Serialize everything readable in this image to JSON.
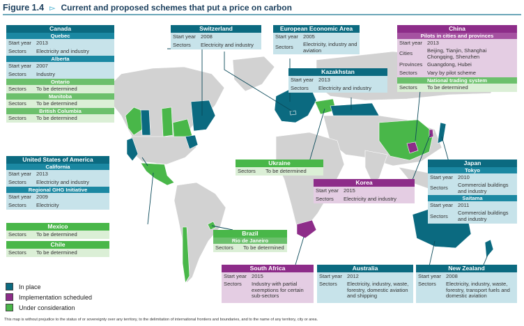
{
  "figure": {
    "number": "Figure 1.4",
    "title": "Current and proposed schemes that put a price on carbon"
  },
  "colors": {
    "in_place": "#0b6a80",
    "scheduled": "#8d2c89",
    "consideration": "#49b749",
    "land": "#d2d2d2"
  },
  "legend": [
    {
      "label": "In place",
      "color": "#0b6a80"
    },
    {
      "label": "Implementation scheduled",
      "color": "#8d2c89"
    },
    {
      "label": "Under consideration",
      "color": "#49b749"
    }
  ],
  "boxes": {
    "canada": {
      "title": "Canada",
      "quebec": "Quebec",
      "q_start_k": "Start year",
      "q_start_v": "2013",
      "q_sect_k": "Sectors",
      "q_sect_v": "Electricity and industry",
      "alberta": "Alberta",
      "a_start_k": "Start year",
      "a_start_v": "2007",
      "a_sect_k": "Sectors",
      "a_sect_v": "Industry",
      "ontario": "Ontario",
      "o_sect_k": "Sectors",
      "o_sect_v": "To be determined",
      "manitoba": "Manitoba",
      "m_sect_k": "Sectors",
      "m_sect_v": "To be determined",
      "bc": "British Columbia",
      "bc_sect_k": "Sectors",
      "bc_sect_v": "To be determined"
    },
    "switzerland": {
      "title": "Switzerland",
      "start_k": "Start year",
      "start_v": "2008",
      "sect_k": "Sectors",
      "sect_v": "Electricity and industry"
    },
    "eea": {
      "title": "European Economic Area",
      "start_k": "Start year",
      "start_v": "2005",
      "sect_k": "Sectors",
      "sect_v": "Electricity, industry and aviation"
    },
    "china": {
      "title": "China",
      "pilots": "Pilots in cities and provinces",
      "start_k": "Start year",
      "start_v": "2013",
      "cities_k": "Cities",
      "cities_v": "Beijing, Tianjin, Shanghai Chongqing, Shenzhen",
      "prov_k": "Provinces",
      "prov_v": "Guangdong, Hubei",
      "sect_k": "Sectors",
      "sect_v": "Vary by pilot scheme",
      "national": "National trading system",
      "n_sect_k": "Sectors",
      "n_sect_v": "To be determined"
    },
    "kazakhstan": {
      "title": "Kazakhstan",
      "start_k": "Start year",
      "start_v": "2013",
      "sect_k": "Sectors",
      "sect_v": "Electricity and industry"
    },
    "usa": {
      "title": "United States of America",
      "california": "California",
      "c_start_k": "Start year",
      "c_start_v": "2013",
      "c_sect_k": "Sectors",
      "c_sect_v": "Electricity and industry",
      "rggi": "Regional GHG Initiative",
      "r_start_k": "Start year",
      "r_start_v": "2009",
      "r_sect_k": "Sectors",
      "r_sect_v": "Electricity"
    },
    "ukraine": {
      "title": "Ukraine",
      "sect_k": "Sectors",
      "sect_v": "To be determined"
    },
    "korea": {
      "title": "Korea",
      "start_k": "Start year",
      "start_v": "2015",
      "sect_k": "Sectors",
      "sect_v": "Electricity and industry"
    },
    "japan": {
      "title": "Japan",
      "tokyo": "Tokyo",
      "t_start_k": "Start year",
      "t_start_v": "2010",
      "t_sect_k": "Sectors",
      "t_sect_v": "Commercial buildings and industry",
      "saitama": "Saitama",
      "s_start_k": "Start year",
      "s_start_v": "2011",
      "s_sect_k": "Sectors",
      "s_sect_v": "Commercial buildings and industry"
    },
    "mexico": {
      "title": "Mexico",
      "sect_k": "Sectors",
      "sect_v": "To be determined"
    },
    "chile": {
      "title": "Chile",
      "sect_k": "Sectors",
      "sect_v": "To be determined"
    },
    "brazil": {
      "title": "Brazil",
      "rio": "Rio de Janeiro",
      "sect_k": "Sectors",
      "sect_v": "To be determined"
    },
    "south_africa": {
      "title": "South Africa",
      "start_k": "Start year",
      "start_v": "2015",
      "sect_k": "Sectors",
      "sect_v": "Industry with partial exemptions for certain sub-sectors"
    },
    "australia": {
      "title": "Australia",
      "start_k": "Start year",
      "start_v": "2012",
      "sect_k": "Sectors",
      "sect_v": "Electricity, industry, waste, forestry, domestic aviation and shipping"
    },
    "new_zealand": {
      "title": "New Zealand",
      "start_k": "Start year",
      "start_v": "2008",
      "sect_k": "Sectors",
      "sect_v": "Electricity, industry, waste, forestry, transport fuels and domestic aviation"
    }
  },
  "footnote": "This map is without prejudice to the status of or sovereignty over any territory, to the delimitation of international frontiers and boundaries, and to the name of any territory, city or area."
}
